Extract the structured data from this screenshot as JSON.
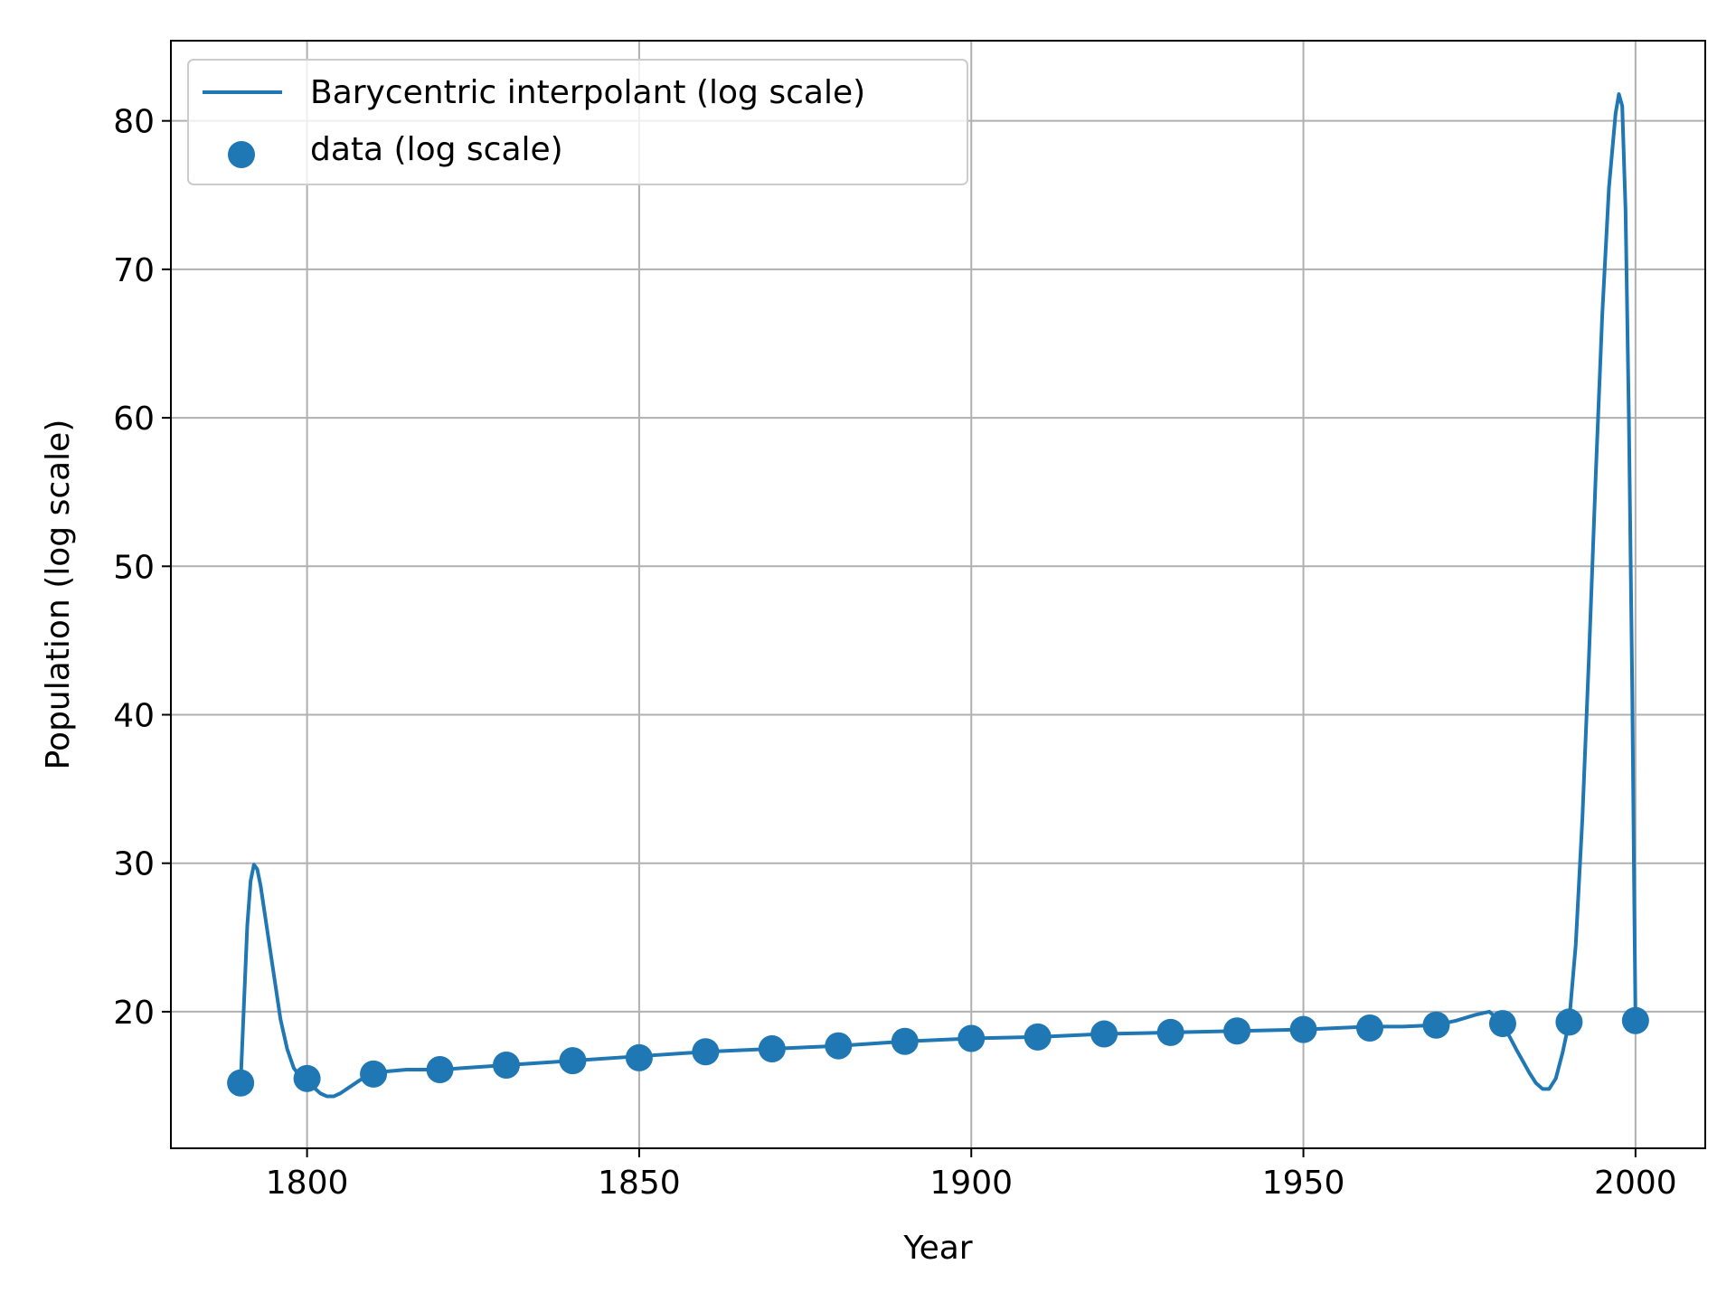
{
  "chart_data": {
    "type": "line",
    "title": "",
    "xlabel": "Year",
    "ylabel": "Population (log scale)",
    "xlim": [
      1779.5,
      2010.5
    ],
    "ylim": [
      10.8,
      85.4
    ],
    "xticks": [
      1800,
      1850,
      1900,
      1950,
      2000
    ],
    "yticks": [
      20,
      30,
      40,
      50,
      60,
      70,
      80
    ],
    "grid": true,
    "legend_position": "top-left",
    "colors": {
      "series": "#1f77b4",
      "grid": "#b0b0b0",
      "frame": "#000000"
    },
    "series": [
      {
        "name": "Barycentric interpolant (log scale)",
        "type": "line",
        "x": [
          1790,
          1790.5,
          1791,
          1791.5,
          1792,
          1792.5,
          1793,
          1793.5,
          1794,
          1795,
          1796,
          1797,
          1798,
          1799,
          1800,
          1801,
          1802,
          1803,
          1804,
          1805,
          1806,
          1808,
          1810,
          1815,
          1820,
          1830,
          1840,
          1850,
          1860,
          1870,
          1880,
          1890,
          1900,
          1910,
          1920,
          1930,
          1940,
          1950,
          1960,
          1965,
          1970,
          1973,
          1976,
          1978,
          1980,
          1982,
          1984,
          1985,
          1986,
          1987,
          1988,
          1989,
          1990,
          1991,
          1992,
          1993,
          1994,
          1995,
          1996,
          1997,
          1997.5,
          1998,
          1998.5,
          1999,
          1999.5,
          1999.8,
          2000
        ],
        "y": [
          15.2,
          20.5,
          25.8,
          28.8,
          29.9,
          29.6,
          28.5,
          27.0,
          25.5,
          22.5,
          19.5,
          17.5,
          16.2,
          15.6,
          15.3,
          14.9,
          14.5,
          14.3,
          14.3,
          14.5,
          14.8,
          15.4,
          15.9,
          16.1,
          16.1,
          16.4,
          16.7,
          17.0,
          17.3,
          17.5,
          17.7,
          18.0,
          18.2,
          18.3,
          18.5,
          18.6,
          18.7,
          18.8,
          19.0,
          19.0,
          19.1,
          19.4,
          19.8,
          20.0,
          19.2,
          17.5,
          15.9,
          15.2,
          14.8,
          14.8,
          15.5,
          17.2,
          19.3,
          24.5,
          33.0,
          44.0,
          56.0,
          67.0,
          75.5,
          80.5,
          81.8,
          81.0,
          74.0,
          60.0,
          42.0,
          28.0,
          19.4
        ]
      },
      {
        "name": "data (log scale)",
        "type": "scatter",
        "x": [
          1790,
          1800,
          1810,
          1820,
          1830,
          1840,
          1850,
          1860,
          1870,
          1880,
          1890,
          1900,
          1910,
          1920,
          1930,
          1940,
          1950,
          1960,
          1970,
          1980,
          1990,
          2000
        ],
        "y": [
          15.2,
          15.5,
          15.8,
          16.1,
          16.4,
          16.7,
          16.9,
          17.3,
          17.5,
          17.7,
          18.0,
          18.2,
          18.3,
          18.5,
          18.6,
          18.7,
          18.8,
          18.9,
          19.1,
          19.2,
          19.3,
          19.4
        ]
      }
    ]
  }
}
